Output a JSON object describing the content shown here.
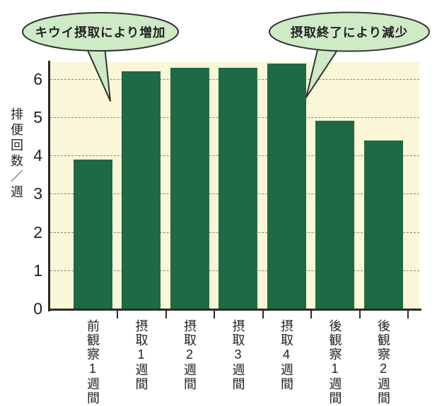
{
  "chart_data": {
    "type": "bar",
    "title": "",
    "xlabel": "",
    "ylabel": "排便回数／週",
    "categories": [
      "前観察1週間",
      "摂取1週間",
      "摂取2週間",
      "摂取3週間",
      "摂取4週間",
      "後観察1週間",
      "後観察2週間"
    ],
    "values": [
      3.9,
      6.2,
      6.3,
      6.3,
      6.4,
      4.9,
      4.4
    ],
    "yticks": [
      0,
      1,
      2,
      3,
      4,
      5,
      6
    ],
    "ylim": [
      0,
      6.44
    ],
    "grid": "horizontal-dashed",
    "legend": "none",
    "annotations": [
      {
        "id": "increase",
        "text": "キウイ摂取により増加",
        "points_between": [
          "前観察1週間",
          "摂取1週間"
        ]
      },
      {
        "id": "decrease",
        "text": "摂取終了により減少",
        "points_between": [
          "摂取4週間",
          "後観察1週間"
        ]
      }
    ],
    "colors": {
      "bar": "#1e6a45",
      "plot_background": "#faf6d8",
      "page_background": "#ffffff",
      "callout_fill": "#ceeac6",
      "callout_stroke": "#333333",
      "grid_line": "#8a8a80",
      "axis_line": "#2a2a2a",
      "text": "#222222"
    }
  }
}
